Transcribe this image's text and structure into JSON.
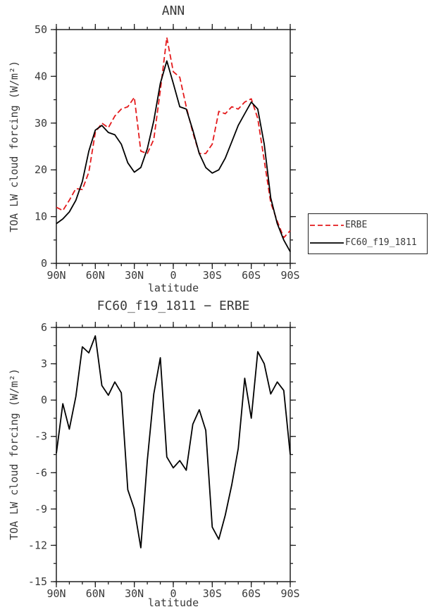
{
  "figure": {
    "background": "#ffffff",
    "text_color": "#3a3a3a",
    "axis_color": "#1f1f1f"
  },
  "chart_data": [
    {
      "type": "line",
      "title": "ANN",
      "xlabel": "latitude",
      "ylabel": "TOA LW cloud forcing (W/m²)",
      "xlim": [
        90,
        -90
      ],
      "ylim": [
        0,
        50
      ],
      "yticks": [
        0,
        10,
        20,
        30,
        40,
        50
      ],
      "y_minor_step": 5,
      "x_minor_step": 10,
      "grid": false,
      "legend_position": "outside-right",
      "xticks": [
        {
          "value": 90,
          "label": "90N"
        },
        {
          "value": 60,
          "label": "60N"
        },
        {
          "value": 30,
          "label": "30N"
        },
        {
          "value": 0,
          "label": "0"
        },
        {
          "value": -30,
          "label": "30S"
        },
        {
          "value": -60,
          "label": "60S"
        },
        {
          "value": -90,
          "label": "90S"
        }
      ],
      "x": [
        90,
        85,
        80,
        75,
        70,
        65,
        60,
        55,
        50,
        45,
        40,
        35,
        30,
        25,
        20,
        15,
        10,
        5,
        0,
        -5,
        -10,
        -15,
        -20,
        -25,
        -30,
        -35,
        -40,
        -45,
        -50,
        -55,
        -60,
        -65,
        -70,
        -75,
        -80,
        -85,
        -90
      ],
      "series": [
        {
          "name": "ERBE",
          "color": "#e41a1c",
          "style": "dashed",
          "values": [
            12.0,
            11.3,
            13.5,
            16.0,
            15.8,
            19.5,
            28.0,
            30.0,
            29.0,
            31.5,
            33.0,
            33.5,
            35.5,
            24.0,
            23.5,
            26.5,
            37.0,
            48.3,
            41.0,
            39.8,
            33.5,
            28.0,
            23.5,
            23.5,
            25.5,
            32.5,
            32.0,
            33.5,
            33.0,
            34.5,
            35.2,
            31.0,
            22.0,
            13.0,
            9.0,
            5.5,
            7.0
          ]
        },
        {
          "name": "FC60_f19_1811",
          "color": "#000000",
          "style": "solid",
          "values": [
            8.5,
            9.5,
            11.0,
            13.5,
            17.5,
            24.0,
            28.5,
            29.5,
            28.0,
            27.5,
            25.5,
            21.5,
            19.5,
            20.5,
            24.5,
            30.5,
            38.5,
            43.3,
            38.5,
            33.5,
            33.0,
            28.5,
            23.5,
            20.5,
            19.3,
            20.0,
            22.5,
            26.0,
            29.5,
            32.0,
            34.5,
            33.0,
            25.5,
            14.0,
            8.5,
            5.0,
            2.5
          ]
        }
      ]
    },
    {
      "type": "line",
      "title": "FC60_f19_1811 − ERBE",
      "xlabel": "latitude",
      "ylabel": "TOA LW cloud forcing (W/m²)",
      "xlim": [
        90,
        -90
      ],
      "ylim": [
        -15,
        6
      ],
      "yticks": [
        -15,
        -12,
        -9,
        -6,
        -3,
        0,
        3,
        6
      ],
      "y_minor_step": 1.5,
      "x_minor_step": 10,
      "grid": false,
      "legend_position": "none",
      "xticks": [
        {
          "value": 90,
          "label": "90N"
        },
        {
          "value": 60,
          "label": "60N"
        },
        {
          "value": 30,
          "label": "30N"
        },
        {
          "value": 0,
          "label": "0"
        },
        {
          "value": -30,
          "label": "30S"
        },
        {
          "value": -60,
          "label": "60S"
        },
        {
          "value": -90,
          "label": "90S"
        }
      ],
      "x": [
        90,
        85,
        80,
        75,
        70,
        65,
        60,
        55,
        50,
        45,
        40,
        35,
        30,
        25,
        20,
        15,
        10,
        5,
        0,
        -5,
        -10,
        -15,
        -20,
        -25,
        -30,
        -35,
        -40,
        -45,
        -50,
        -55,
        -60,
        -65,
        -70,
        -75,
        -80,
        -85,
        -90
      ],
      "series": [
        {
          "name": "FC60_f19_1811 − ERBE",
          "color": "#000000",
          "style": "solid",
          "values": [
            -4.4,
            -0.3,
            -2.4,
            0.3,
            4.4,
            3.9,
            5.3,
            1.2,
            0.4,
            1.5,
            0.6,
            -7.4,
            -9.0,
            -12.2,
            -5.0,
            0.5,
            3.5,
            -4.7,
            -5.6,
            -5.0,
            -5.8,
            -2.0,
            -0.8,
            -2.5,
            -10.5,
            -11.5,
            -9.5,
            -7.0,
            -4.0,
            1.8,
            -1.5,
            4.0,
            3.0,
            0.5,
            1.5,
            0.8,
            -4.5
          ]
        }
      ]
    }
  ]
}
